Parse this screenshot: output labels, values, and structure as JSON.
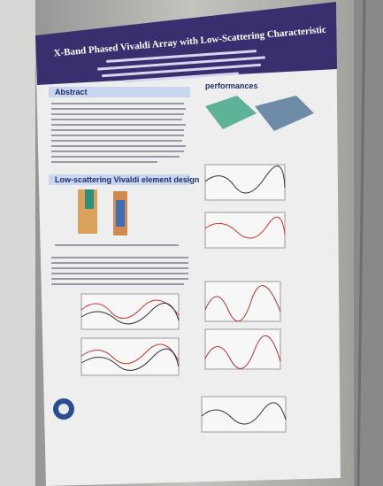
{
  "poster": {
    "title": "X-Band Phased Vivaldi Array with Low-Scattering Characteristic",
    "sections": [
      "Abstract",
      "Low-scattering Vivaldi element design",
      "performances"
    ]
  }
}
